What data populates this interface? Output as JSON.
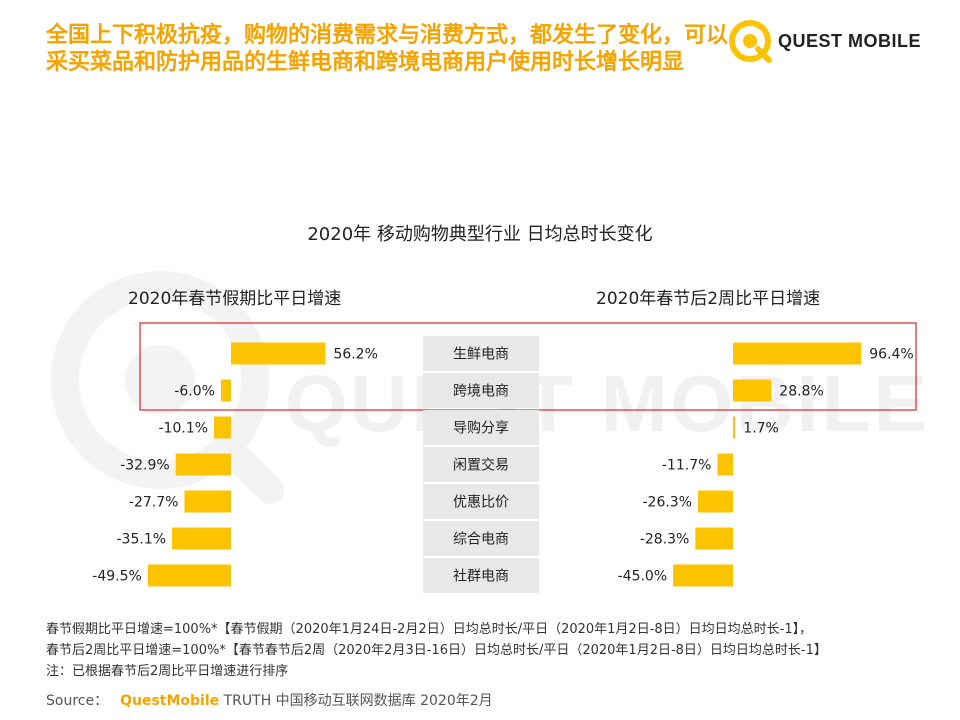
{
  "headline": "全国上下积极抗疫，购物的消费需求与消费方式，都发生了变化，可以采买菜品和防护用品的生鲜电商和跨境电商用户使用时长增长明显",
  "logo": {
    "text": "QUEST MOBILE",
    "watermark": "QUEST MOBILE"
  },
  "colors": {
    "accent": "#f5a300",
    "bar": "#fcc400",
    "highlight": "#d9232e",
    "label_bg": "#e8e8e8"
  },
  "chart_data": {
    "type": "bar",
    "title": "2020年 移动购物典型行业 日均总时长变化",
    "categories": [
      "生鲜电商",
      "跨境电商",
      "导购分享",
      "闲置交易",
      "优惠比价",
      "综合电商",
      "社群电商"
    ],
    "series": [
      {
        "name": "2020年春节假期比平日增速",
        "values": [
          56.2,
          -6.0,
          -10.1,
          -32.9,
          -27.7,
          -35.1,
          -49.5
        ]
      },
      {
        "name": "2020年春节后2周比平日增速",
        "values": [
          96.4,
          28.8,
          1.7,
          -11.7,
          -26.3,
          -28.3,
          -45.0
        ]
      }
    ],
    "unit": "%",
    "highlighted_categories": [
      "生鲜电商",
      "跨境电商"
    ]
  },
  "notes": [
    "春节假期比平日增速=100%*【春节假期（2020年1月24日-2月2日）日均总时长/平日（2020年1月2日-8日）日均日均总时长-1】，",
    "春节后2周比平日增速=100%*【春节春节后2周（2020年2月3日-16日）日均总时长/平日（2020年1月2日-8日）日均日均总时长-1】",
    "注：已根据春节后2周比平日增速进行排序"
  ],
  "source": {
    "label": "Source：",
    "brand": "QuestMobile",
    "rest": "TRUTH 中国移动互联网数据库 2020年2月"
  }
}
